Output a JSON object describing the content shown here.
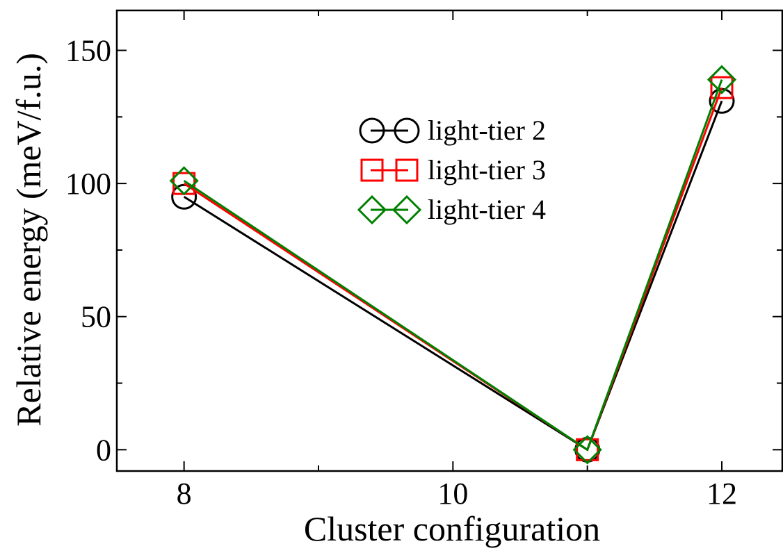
{
  "chart_data": {
    "type": "line",
    "title": "",
    "xlabel": "Cluster configuration",
    "ylabel": "Relative energy (meV/f.u.)",
    "xlim": [
      7.5,
      12.45
    ],
    "ylim": [
      -8,
      165
    ],
    "x_ticks": [
      8,
      10,
      12
    ],
    "x_minor_ticks": [
      9,
      11
    ],
    "y_ticks": [
      0,
      50,
      100,
      150
    ],
    "y_minor_ticks": [
      25,
      75,
      125
    ],
    "grid": false,
    "legend_position": "top-center",
    "x": [
      8,
      11,
      12
    ],
    "series": [
      {
        "name": "light-tier 2",
        "color": "#000000",
        "marker": "circle",
        "values": [
          95,
          0,
          131
        ]
      },
      {
        "name": "light-tier 3",
        "color": "#ff0000",
        "marker": "square",
        "values": [
          100,
          0,
          136
        ]
      },
      {
        "name": "light-tier 4",
        "color": "#008000",
        "marker": "diamond",
        "values": [
          101,
          0,
          139
        ]
      }
    ]
  }
}
